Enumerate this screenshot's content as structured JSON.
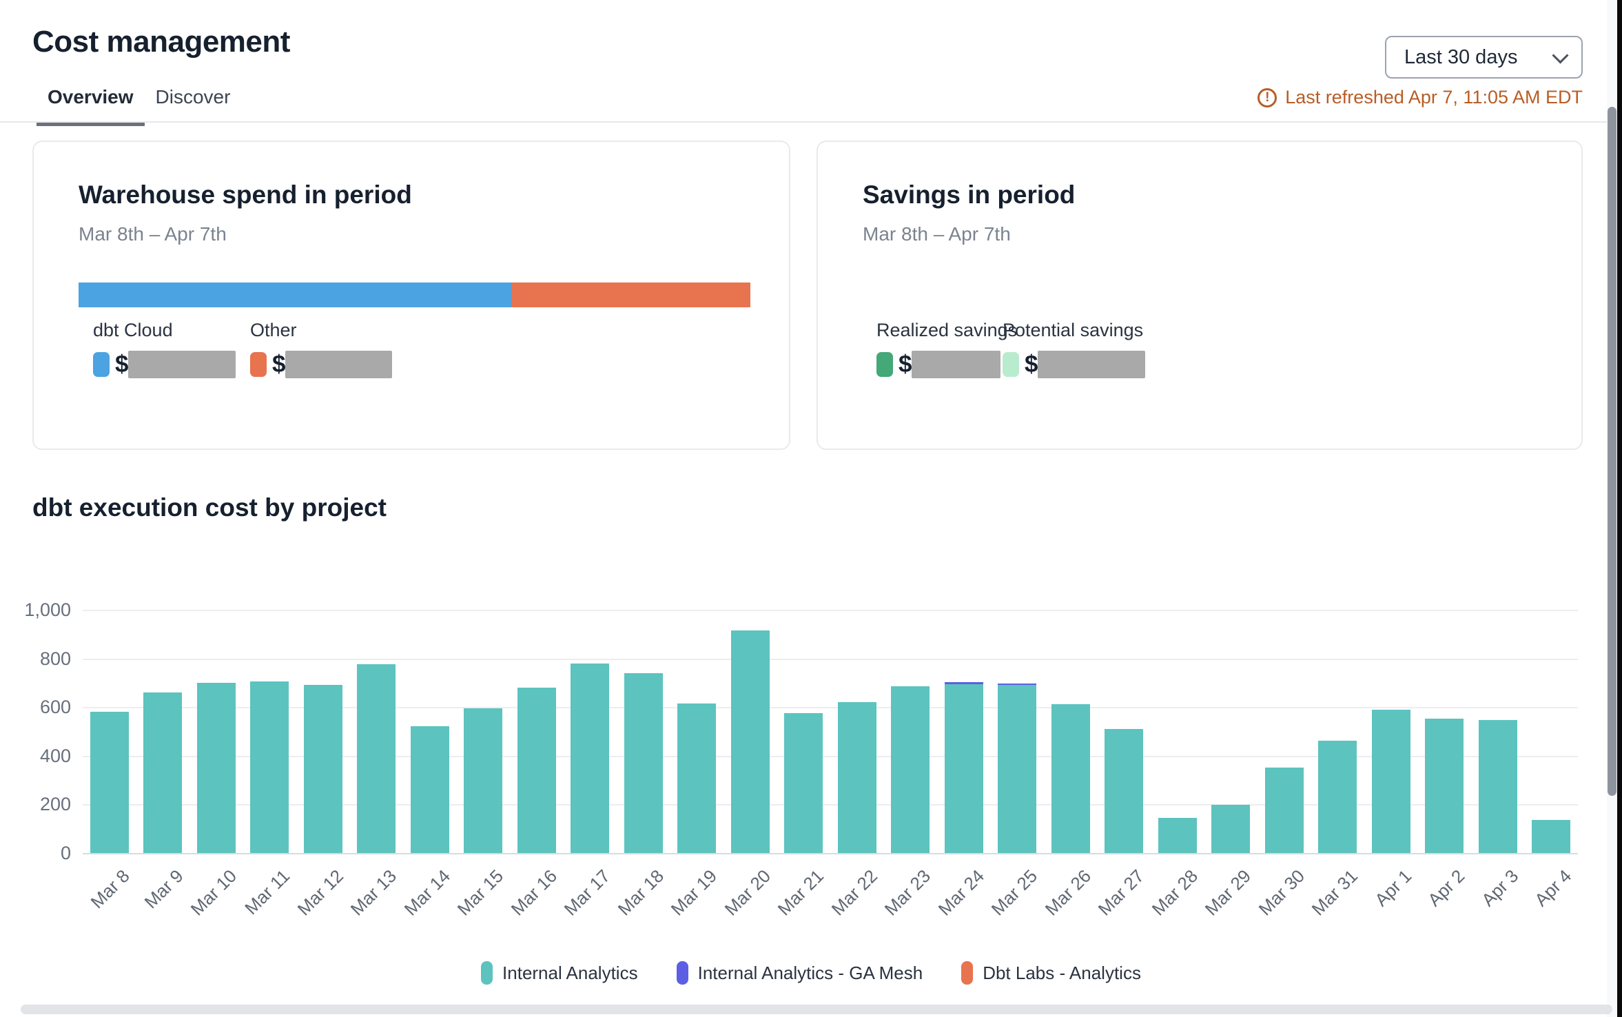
{
  "page": {
    "title": "Cost management"
  },
  "tabs": [
    {
      "label": "Overview",
      "active": true
    },
    {
      "label": "Discover",
      "active": false
    }
  ],
  "period_selector": {
    "value": "Last 30 days"
  },
  "refresh": {
    "icon_glyph": "!",
    "text": "Last refreshed Apr 7, 11:05 AM EDT",
    "color": "#b85d26"
  },
  "cards": {
    "warehouse": {
      "title": "Warehouse spend in period",
      "subtitle": "Mar 8th – Apr 7th",
      "spend_bar": {
        "segments": [
          {
            "label": "dbt Cloud",
            "color": "#4ba3e2",
            "pct": 64.5
          },
          {
            "label": "Other",
            "color": "#e8734f",
            "pct": 35.5
          }
        ]
      },
      "legend": [
        {
          "label": "dbt Cloud",
          "color": "#4ba3e2",
          "value_prefix": "$",
          "value_hidden": true
        },
        {
          "label": "Other",
          "color": "#e8734f",
          "value_prefix": "$",
          "value_hidden": true
        }
      ]
    },
    "savings": {
      "title": "Savings in period",
      "subtitle": "Mar 8th – Apr 7th",
      "legend": [
        {
          "label": "Realized savings",
          "color": "#44a877",
          "value_prefix": "$",
          "value_hidden": true
        },
        {
          "label": "Potential savings",
          "color": "#b9eccf",
          "value_prefix": "$",
          "value_hidden": true
        }
      ]
    }
  },
  "chart_data": {
    "type": "bar",
    "stacked": true,
    "title": "dbt execution cost by project",
    "categories": [
      "Mar 8",
      "Mar 9",
      "Mar 10",
      "Mar 11",
      "Mar 12",
      "Mar 13",
      "Mar 14",
      "Mar 15",
      "Mar 16",
      "Mar 17",
      "Mar 18",
      "Mar 19",
      "Mar 20",
      "Mar 21",
      "Mar 22",
      "Mar 23",
      "Mar 24",
      "Mar 25",
      "Mar 26",
      "Mar 27",
      "Mar 28",
      "Mar 29",
      "Mar 30",
      "Mar 31",
      "Apr 1",
      "Apr 2",
      "Apr 3",
      "Apr 4"
    ],
    "series": [
      {
        "name": "Internal Analytics",
        "color": "#5cc3bf",
        "values": [
          580,
          660,
          700,
          705,
          690,
          775,
          520,
          595,
          680,
          780,
          740,
          615,
          915,
          575,
          620,
          685,
          695,
          690,
          612,
          510,
          145,
          197,
          352,
          462,
          588,
          553,
          547,
          137
        ]
      },
      {
        "name": "Internal Analytics - GA Mesh",
        "color": "#5c5fe3",
        "values": [
          0,
          0,
          0,
          0,
          0,
          0,
          0,
          0,
          0,
          0,
          0,
          0,
          0,
          0,
          0,
          0,
          8,
          8,
          0,
          0,
          0,
          0,
          0,
          0,
          0,
          0,
          0,
          0
        ]
      },
      {
        "name": "Dbt Labs - Analytics",
        "color": "#e8734f",
        "values": [
          0,
          0,
          0,
          0,
          0,
          0,
          0,
          0,
          0,
          0,
          0,
          0,
          0,
          0,
          0,
          0,
          0,
          0,
          0,
          0,
          0,
          0,
          0,
          0,
          0,
          0,
          0,
          0
        ]
      }
    ],
    "ylim": [
      0,
      1000
    ],
    "yticks": [
      0,
      200,
      400,
      600,
      800,
      1000
    ],
    "ytick_labels": [
      "0",
      "200",
      "400",
      "600",
      "800",
      "1,000"
    ],
    "grid": true,
    "legend_position": "bottom"
  }
}
